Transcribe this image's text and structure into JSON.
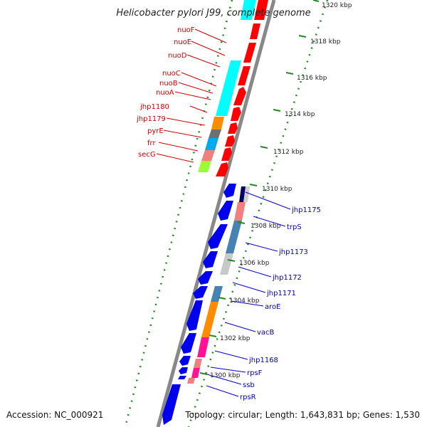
{
  "title": "Helicobacter pylori J99, complete genome",
  "accession": "Accession: NC_000921",
  "topology": "Topology: circular; Length: 1,643,831 bp; Genes: 1,530",
  "colors": {
    "forward_track": "#ff0000",
    "reverse_track": "#0000ee",
    "left_label": "#cc0000",
    "right_label": "#0000aa",
    "backbone": "#888888",
    "ticks": "#228822"
  },
  "scale_ticks": [
    "1300 kbp",
    "1302 kbp",
    "1304 kbp",
    "1306 kbp",
    "1308 kbp",
    "1310 kbp",
    "1312 kbp",
    "1314 kbp",
    "1316 kbp",
    "1318 kbp",
    "1320 kbp"
  ],
  "left_genes": [
    "nuoF",
    "nuoE",
    "nuoD",
    "nuoC",
    "nuoB",
    "nuoA",
    "jhp1180",
    "jhp1179",
    "pyrE",
    "frr",
    "secG"
  ],
  "right_genes": [
    "jhp1175",
    "trpS",
    "jhp1173",
    "jhp1172",
    "jhp1171",
    "aroE",
    "vacB",
    "jhp1168",
    "rpsF",
    "ssb",
    "rpsR"
  ]
}
